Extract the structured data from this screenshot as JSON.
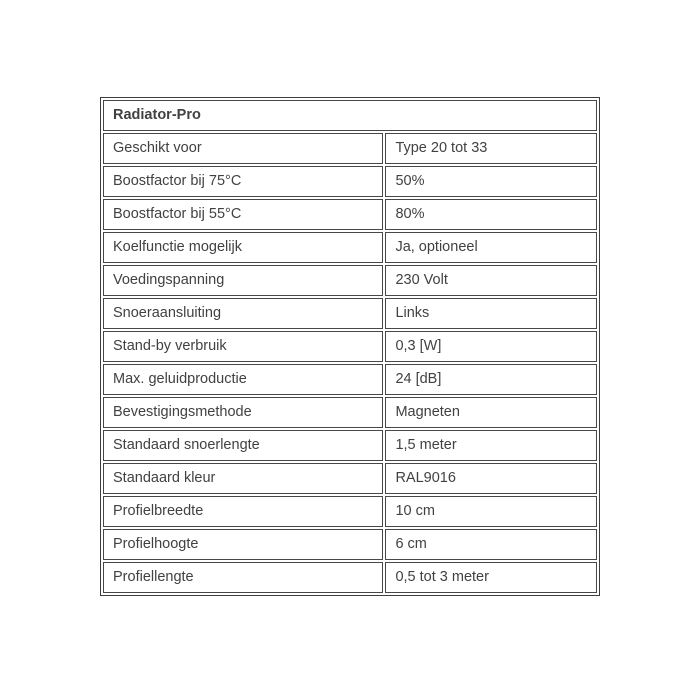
{
  "table": {
    "title": "Radiator-Pro",
    "rows": [
      {
        "label": "Geschikt voor",
        "value": "Type 20 tot 33"
      },
      {
        "label": "Boostfactor bij 75°C",
        "value": "50%"
      },
      {
        "label": "Boostfactor bij 55°C",
        "value": "80%"
      },
      {
        "label": "Koelfunctie mogelijk",
        "value": "Ja, optioneel"
      },
      {
        "label": "Voedingspanning",
        "value": "230 Volt"
      },
      {
        "label": "Snoeraansluiting",
        "value": "Links"
      },
      {
        "label": "Stand-by verbruik",
        "value": "0,3 [W]"
      },
      {
        "label": "Max. geluidproductie",
        "value": "24 [dB]"
      },
      {
        "label": "Bevestigingsmethode",
        "value": "Magneten"
      },
      {
        "label": "Standaard snoerlengte",
        "value": "1,5 meter"
      },
      {
        "label": "Standaard kleur",
        "value": "RAL9016"
      },
      {
        "label": "Profielbreedte",
        "value": "10 cm"
      },
      {
        "label": "Profielhoogte",
        "value": "6 cm"
      },
      {
        "label": "Profiellengte",
        "value": "0,5 tot 3 meter"
      }
    ],
    "colors": {
      "text": "#414141",
      "border": "#474747",
      "outer_border": "#3e3e3e",
      "background": "#ffffff"
    }
  }
}
